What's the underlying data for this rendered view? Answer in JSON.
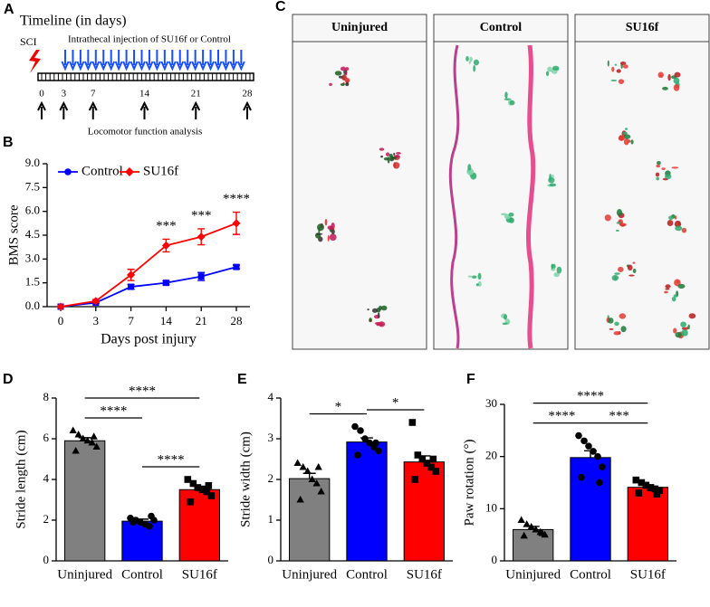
{
  "timeline": {
    "label": "A",
    "title": "Timeline (in days)",
    "event": "SCI",
    "injection": "Intrathecal injection of SU16f or Control",
    "days": [
      0,
      3,
      7,
      14,
      21,
      28
    ],
    "analysis": "Locomotor function analysis"
  },
  "footprints": {
    "label": "C",
    "groups": [
      "Uninjured",
      "Control",
      "SU16f"
    ]
  },
  "chart_data": [
    {
      "type": "line",
      "label": "B",
      "xlabel": "Days post injury",
      "ylabel": "BMS score",
      "legend": "top-left",
      "categories": [
        "0",
        "3",
        "7",
        "14",
        "21",
        "28"
      ],
      "ylim": [
        0,
        9
      ],
      "yticks": [
        {
          "value": 0,
          "label": "0.0"
        },
        {
          "value": 1.5,
          "label": "1.5"
        },
        {
          "value": 3,
          "label": "3.0"
        },
        {
          "value": 4.5,
          "label": "4.5"
        },
        {
          "value": 6,
          "label": "6.0"
        },
        {
          "value": 7.5,
          "label": "7.5"
        },
        {
          "value": 9,
          "label": "9.0"
        }
      ],
      "series": [
        {
          "name": "Control",
          "color": "#0000ff",
          "marker": "square",
          "values": [
            0,
            0.25,
            1.25,
            1.5,
            1.9,
            2.5
          ],
          "errors": [
            0,
            0.05,
            0.15,
            0.12,
            0.25,
            0.12
          ]
        },
        {
          "name": "SU16f",
          "color": "#ff0000",
          "marker": "diamond",
          "values": [
            0,
            0.35,
            2.0,
            3.85,
            4.4,
            5.25
          ],
          "errors": [
            0,
            0.1,
            0.35,
            0.4,
            0.5,
            0.7
          ]
        }
      ],
      "annotations": [
        null,
        null,
        null,
        "***",
        "***",
        "****"
      ]
    },
    {
      "type": "bar",
      "label": "D",
      "ylabel": "Stride length (cm)",
      "categories": [
        "Uninjured",
        "Control",
        "SU16f"
      ],
      "colors": [
        "#808080",
        "#0000ff",
        "#ff0000"
      ],
      "markers": [
        "triangle",
        "circle",
        "square"
      ],
      "values": [
        5.9,
        1.95,
        3.5
      ],
      "errors": [
        0.15,
        0.1,
        0.17
      ],
      "points": [
        [
          6.4,
          6.2,
          6.0,
          5.9,
          5.8,
          5.6,
          5.4,
          6.1
        ],
        [
          2.1,
          2.0,
          1.9,
          1.8,
          1.7,
          2.0,
          1.9,
          2.2
        ],
        [
          4.0,
          3.8,
          3.6,
          3.5,
          3.4,
          3.2,
          2.9,
          3.7
        ]
      ],
      "ylim": [
        0,
        8
      ],
      "yticks": [
        0,
        2,
        4,
        6,
        8
      ],
      "brackets": [
        {
          "from": 0,
          "to": 1,
          "label": "****"
        },
        {
          "from": 0,
          "to": 2,
          "label": "****"
        },
        {
          "from": 1,
          "to": 2,
          "label": "****"
        }
      ]
    },
    {
      "type": "bar",
      "label": "E",
      "ylabel": "Stride width (cm)",
      "categories": [
        "Uninjured",
        "Control",
        "SU16f"
      ],
      "colors": [
        "#808080",
        "#0000ff",
        "#ff0000"
      ],
      "markers": [
        "triangle",
        "circle",
        "square"
      ],
      "values": [
        2.02,
        2.92,
        2.43
      ],
      "errors": [
        0.13,
        0.1,
        0.15
      ],
      "points": [
        [
          2.4,
          2.3,
          2.2,
          2.0,
          1.9,
          1.7,
          1.5,
          2.3
        ],
        [
          3.3,
          3.2,
          3.0,
          2.9,
          2.8,
          2.7,
          2.6,
          2.9
        ],
        [
          3.4,
          2.6,
          2.5,
          2.4,
          2.3,
          2.2,
          2.0,
          2.5
        ]
      ],
      "ylim": [
        0,
        4
      ],
      "yticks": [
        0,
        1,
        2,
        3,
        4
      ],
      "brackets": [
        {
          "from": 0,
          "to": 1,
          "label": "*"
        },
        {
          "from": 1,
          "to": 2,
          "label": "*"
        }
      ]
    },
    {
      "type": "bar",
      "label": "F",
      "ylabel": "Paw rotation (°)",
      "categories": [
        "Uninjured",
        "Control",
        "SU16f"
      ],
      "colors": [
        "#808080",
        "#0000ff",
        "#ff0000"
      ],
      "markers": [
        "triangle",
        "circle",
        "square"
      ],
      "values": [
        6.0,
        19.8,
        14.1
      ],
      "errors": [
        0.6,
        1.3,
        0.5
      ],
      "points": [
        [
          7.8,
          7.0,
          6.5,
          6.0,
          5.5,
          5.0,
          4.8,
          5.3
        ],
        [
          24,
          23,
          22,
          21,
          20,
          18,
          16,
          15
        ],
        [
          15.5,
          15,
          14.5,
          14,
          13.8,
          13.5,
          13,
          12.8
        ]
      ],
      "ylim": [
        0,
        30
      ],
      "yticks": [
        0,
        10,
        20,
        30
      ],
      "brackets": [
        {
          "from": 0,
          "to": 1,
          "label": "****"
        },
        {
          "from": 0,
          "to": 2,
          "label": "****"
        },
        {
          "from": 1,
          "to": 2,
          "label": "***"
        }
      ]
    }
  ]
}
